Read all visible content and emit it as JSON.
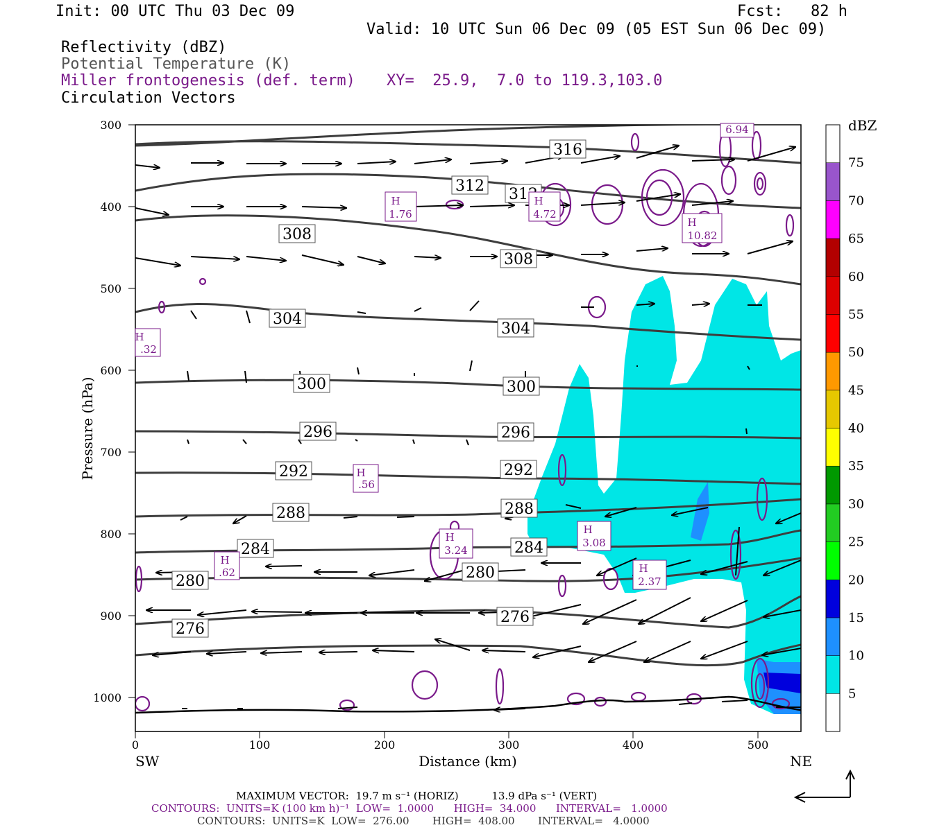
{
  "header": {
    "init": "Init: 00 UTC Thu 03 Dec 09",
    "fcst": "Fcst:   82 h",
    "valid": "Valid: 10 UTC Sun 06 Dec 09 (05 EST Sun 06 Dec 09)",
    "fields": [
      {
        "text": "Reflectivity (dBZ)",
        "color": "#000000"
      },
      {
        "text": "Potential Temperature (K)",
        "color": "#555555"
      },
      {
        "text": "Miller frontogenesis (def. term)",
        "color": "#7a1a8a"
      },
      {
        "text": "Circulation Vectors",
        "color": "#000000"
      }
    ],
    "xy_label": "XY=  25.9,  7.0 to 119.3,103.0"
  },
  "footer": {
    "max_vector": "MAXIMUM VECTOR:  19.7 m s⁻¹ (HORIZ)          13.9 dPa s⁻¹ (VERT)",
    "contours_fronto": "CONTOURS:  UNITS=K (100 km h)⁻¹  LOW=  1.0000      HIGH=  34.000      INTERVAL=   1.0000",
    "contours_theta": "CONTOURS:  UNITS=K  LOW=  276.00       HIGH=  408.00       INTERVAL=   4.0000"
  },
  "colors": {
    "theta": "#3d3d3d",
    "fronto": "#7a1a8a",
    "refl_5": "#00e6e6",
    "refl_10": "#1e90ff"
  },
  "chart_data": {
    "type": "cross-section",
    "xlabel": "Distance (km)",
    "ylabel": "Pressure (hPa)",
    "x_ticks": [
      "0",
      "100",
      "200",
      "300",
      "400",
      "500"
    ],
    "y_ticks": [
      "300",
      "400",
      "500",
      "600",
      "700",
      "800",
      "900",
      "1000"
    ],
    "xlim": [
      0,
      535
    ],
    "ylim": [
      1040,
      300
    ],
    "endpoints": {
      "left": "SW",
      "right": "NE"
    },
    "colorbar": {
      "label": "dBZ",
      "levels": [
        "5",
        "10",
        "15",
        "20",
        "25",
        "30",
        "35",
        "40",
        "45",
        "50",
        "55",
        "60",
        "65",
        "70",
        "75"
      ],
      "colors": [
        "#00e6e6",
        "#1e90ff",
        "#0000dd",
        "#00ff00",
        "#22cc22",
        "#009900",
        "#ffff00",
        "#e6c800",
        "#ff9900",
        "#ff0000",
        "#dd0000",
        "#b30000",
        "#ff00ff",
        "#9955cc",
        "#ffffff"
      ]
    },
    "theta_label_values": [
      "316",
      "312",
      "312",
      "308",
      "308",
      "304",
      "304",
      "300",
      "300",
      "296",
      "296",
      "292",
      "292",
      "288",
      "288",
      "284",
      "284",
      "280",
      "280",
      "276",
      "276"
    ],
    "fronto_maxima": [
      {
        "text": "H",
        "value": "1.76"
      },
      {
        "text": "H",
        "value": "4.72"
      },
      {
        "text": "H",
        "value": "10.82"
      },
      {
        "text": "",
        "value": "6.94"
      },
      {
        "text": "H",
        "value": ".32"
      },
      {
        "text": "H",
        "value": ".56"
      },
      {
        "text": "H",
        "value": "3.24"
      },
      {
        "text": "H",
        "value": "3.08"
      },
      {
        "text": "H",
        "value": ".62"
      },
      {
        "text": "H",
        "value": "2.37"
      }
    ]
  }
}
